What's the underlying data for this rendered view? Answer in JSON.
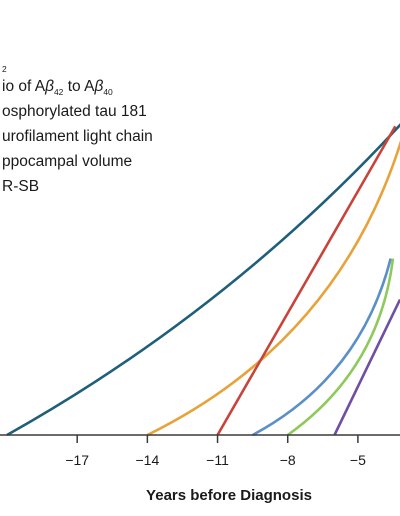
{
  "chart_data": {
    "type": "line",
    "title": "",
    "xlabel": "Years before Diagnosis",
    "ylabel": "",
    "xlim": [
      -20.3,
      -3.2
    ],
    "ylim": [
      0,
      1
    ],
    "x_ticks": [
      -17,
      -14,
      -11,
      -8,
      -5
    ],
    "x_tick_labels": [
      "−17",
      "−14",
      "−11",
      "−8",
      "−5"
    ],
    "grid": false,
    "legend_position": "top-left (partially cropped)",
    "legend": [
      {
        "prefix": "",
        "base": "",
        "sub": "2",
        "visible_text": "2"
      },
      {
        "prefix": "io of A",
        "greek1": "β",
        "sub1": "42",
        "mid": " to A",
        "greek2": "β",
        "sub2": "40"
      },
      {
        "text": "osphorylated tau 181"
      },
      {
        "text": "urofilament light chain"
      },
      {
        "text": "ppocampal volume"
      },
      {
        "text": "R-SB"
      }
    ],
    "series": [
      {
        "color": "#1f5f7a",
        "points": [
          [
            -20.0,
            0.0
          ],
          [
            -3.0,
            1.0
          ]
        ],
        "curve": "slight-concave"
      },
      {
        "color": "#e8a23a",
        "points": [
          [
            -14.0,
            0.0
          ],
          [
            -3.0,
            0.97
          ]
        ],
        "curve": "concave"
      },
      {
        "color": "#c8433a",
        "points": [
          [
            -11.0,
            0.0
          ],
          [
            -3.4,
            0.98
          ]
        ],
        "curve": "straight"
      },
      {
        "color": "#5b8fc7",
        "points": [
          [
            -9.5,
            0.0
          ],
          [
            -3.6,
            0.56
          ]
        ],
        "curve": "concave"
      },
      {
        "color": "#8ec95a",
        "points": [
          [
            -8.0,
            0.0
          ],
          [
            -3.5,
            0.56
          ]
        ],
        "curve": "concave"
      },
      {
        "color": "#6f4ea3",
        "points": [
          [
            -6.0,
            0.0
          ],
          [
            -3.2,
            0.43
          ]
        ],
        "curve": "straight"
      }
    ]
  }
}
